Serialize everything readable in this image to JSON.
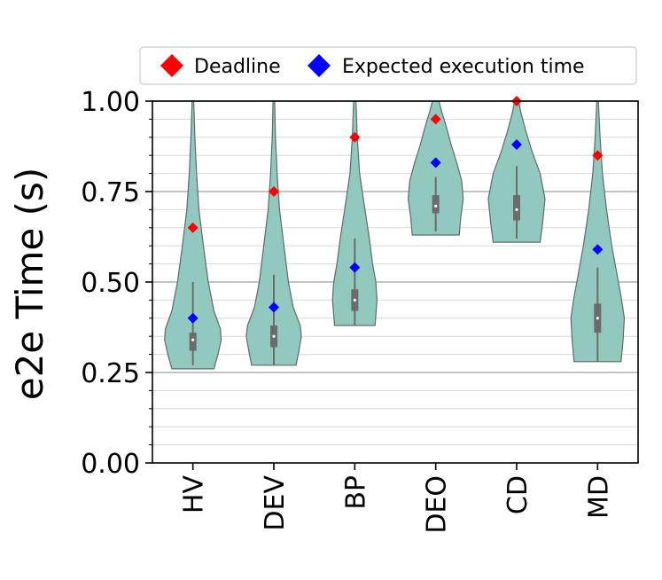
{
  "chart_data": {
    "type": "violin",
    "title": "",
    "xlabel": "",
    "ylabel": "e2e Time (s)",
    "ylim": [
      0,
      1.0
    ],
    "yticks": [
      "0.00",
      "0.25",
      "0.50",
      "0.75",
      "1.00"
    ],
    "grid": "horizontal",
    "legend_position": "top",
    "categories": [
      "HV",
      "DEV",
      "BP",
      "DEO",
      "CD",
      "MD"
    ],
    "violin_color": "#92c9bf",
    "series": [
      {
        "name": "Deadline",
        "color": "#ff0000",
        "values": [
          0.65,
          0.75,
          0.9,
          0.95,
          1.0,
          0.85
        ]
      },
      {
        "name": "Expected execution time",
        "color": "#0000ff",
        "values": [
          0.4,
          0.43,
          0.54,
          0.83,
          0.88,
          0.59
        ]
      }
    ],
    "distributions": [
      {
        "category": "HV",
        "min": 0.26,
        "max": 1.0,
        "q1": 0.31,
        "median": 0.34,
        "q3": 0.36,
        "whisker_low": 0.27,
        "whisker_high": 0.5,
        "profile": [
          [
            0.26,
            0.52
          ],
          [
            0.3,
            0.62
          ],
          [
            0.34,
            0.7
          ],
          [
            0.37,
            0.68
          ],
          [
            0.42,
            0.52
          ],
          [
            0.5,
            0.38
          ],
          [
            0.6,
            0.26
          ],
          [
            0.7,
            0.15
          ],
          [
            0.8,
            0.09
          ],
          [
            0.9,
            0.05
          ],
          [
            1.0,
            0.02
          ]
        ]
      },
      {
        "category": "DEV",
        "min": 0.27,
        "max": 1.0,
        "q1": 0.32,
        "median": 0.35,
        "q3": 0.38,
        "whisker_low": 0.27,
        "whisker_high": 0.52,
        "profile": [
          [
            0.27,
            0.55
          ],
          [
            0.31,
            0.62
          ],
          [
            0.35,
            0.68
          ],
          [
            0.38,
            0.65
          ],
          [
            0.43,
            0.48
          ],
          [
            0.5,
            0.36
          ],
          [
            0.6,
            0.25
          ],
          [
            0.7,
            0.14
          ],
          [
            0.8,
            0.08
          ],
          [
            0.9,
            0.04
          ],
          [
            1.0,
            0.02
          ]
        ]
      },
      {
        "category": "BP",
        "min": 0.38,
        "max": 1.0,
        "q1": 0.42,
        "median": 0.45,
        "q3": 0.48,
        "whisker_low": 0.38,
        "whisker_high": 0.62,
        "profile": [
          [
            0.38,
            0.5
          ],
          [
            0.45,
            0.55
          ],
          [
            0.5,
            0.52
          ],
          [
            0.55,
            0.44
          ],
          [
            0.62,
            0.36
          ],
          [
            0.7,
            0.25
          ],
          [
            0.8,
            0.12
          ],
          [
            0.9,
            0.06
          ],
          [
            1.0,
            0.03
          ]
        ]
      },
      {
        "category": "DEO",
        "min": 0.63,
        "max": 1.0,
        "q1": 0.69,
        "median": 0.71,
        "q3": 0.74,
        "whisker_low": 0.64,
        "whisker_high": 0.79,
        "profile": [
          [
            0.63,
            0.58
          ],
          [
            0.68,
            0.62
          ],
          [
            0.73,
            0.68
          ],
          [
            0.78,
            0.64
          ],
          [
            0.83,
            0.52
          ],
          [
            0.88,
            0.38
          ],
          [
            0.93,
            0.26
          ],
          [
            0.97,
            0.15
          ],
          [
            1.0,
            0.08
          ]
        ]
      },
      {
        "category": "CD",
        "min": 0.61,
        "max": 1.0,
        "q1": 0.67,
        "median": 0.7,
        "q3": 0.74,
        "whisker_low": 0.62,
        "whisker_high": 0.82,
        "profile": [
          [
            0.61,
            0.58
          ],
          [
            0.66,
            0.64
          ],
          [
            0.73,
            0.7
          ],
          [
            0.8,
            0.58
          ],
          [
            0.86,
            0.38
          ],
          [
            0.92,
            0.22
          ],
          [
            0.97,
            0.1
          ],
          [
            1.0,
            0.05
          ]
        ]
      },
      {
        "category": "MD",
        "min": 0.28,
        "max": 1.0,
        "q1": 0.36,
        "median": 0.4,
        "q3": 0.44,
        "whisker_low": 0.28,
        "whisker_high": 0.54,
        "profile": [
          [
            0.28,
            0.58
          ],
          [
            0.34,
            0.63
          ],
          [
            0.4,
            0.66
          ],
          [
            0.46,
            0.58
          ],
          [
            0.52,
            0.48
          ],
          [
            0.6,
            0.35
          ],
          [
            0.7,
            0.22
          ],
          [
            0.8,
            0.12
          ],
          [
            0.9,
            0.06
          ],
          [
            1.0,
            0.02
          ]
        ]
      }
    ]
  }
}
